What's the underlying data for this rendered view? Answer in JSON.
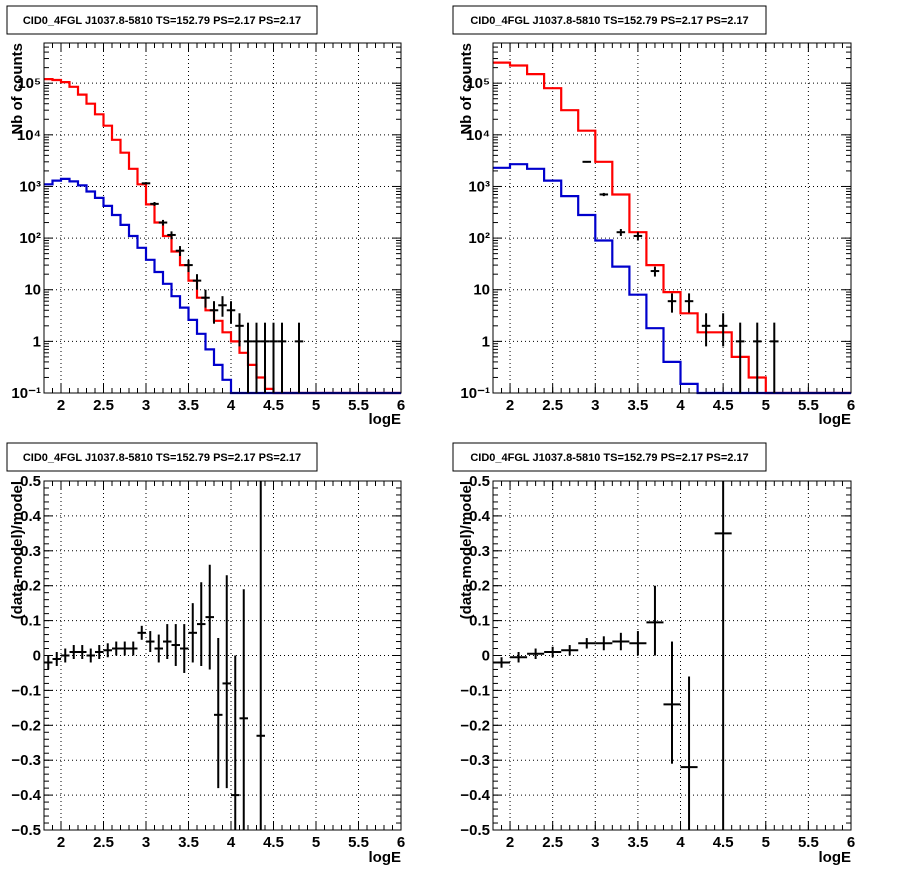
{
  "chart_data": [
    {
      "id": "counts-left",
      "type": "line",
      "title": "CID0_4FGL J1037.8-5810 TS=152.79 PS=2.17 PS=2.17",
      "xlabel": "logE",
      "ylabel": "Nb of counts",
      "xlim": [
        1.8,
        6.0
      ],
      "ylim": [
        0.1,
        600000
      ],
      "log_y": true,
      "grid": true,
      "x_ticks": [
        2,
        2.5,
        3,
        3.5,
        4,
        4.5,
        5,
        5.5,
        6
      ],
      "x_tick_labels": [
        "2",
        "2.5",
        "3",
        "3.5",
        "4",
        "4.5",
        "5",
        "5.5",
        "6"
      ],
      "y_ticks": [
        0.1,
        1,
        10,
        100,
        1000,
        10000,
        100000
      ],
      "y_tick_labels": [
        "10⁻¹",
        "1",
        "10",
        "10²",
        "10³",
        "10⁴",
        "10⁵"
      ],
      "bin_edges": [
        1.8,
        1.9,
        2.0,
        2.1,
        2.2,
        2.3,
        2.4,
        2.5,
        2.6,
        2.7,
        2.8,
        2.9,
        3.0,
        3.1,
        3.2,
        3.3,
        3.4,
        3.5,
        3.6,
        3.7,
        3.8,
        3.9,
        4.0,
        4.1,
        4.2,
        4.3,
        4.4,
        4.5,
        4.6,
        4.7,
        4.8,
        4.9,
        5.0,
        5.1,
        5.2,
        5.3,
        5.4,
        5.5,
        5.6,
        5.7,
        5.8,
        5.9,
        6.0
      ],
      "series": [
        {
          "name": "",
          "color": "#ff0000",
          "style": "step",
          "values": [
            120000,
            115000,
            105000,
            85000,
            60000,
            40000,
            25000,
            15000,
            8000,
            4500,
            2200,
            1100,
            450,
            200,
            110,
            55,
            30,
            15,
            7,
            4,
            2.5,
            1.5,
            1.0,
            0.6,
            0.35,
            0.2,
            0.12,
            0.1,
            0.1,
            0.1,
            0.1,
            0.1,
            0.1,
            0.1,
            0.1,
            0.1,
            0.1,
            0.1,
            0.1,
            0.1,
            0.1,
            0.1
          ]
        },
        {
          "name": "",
          "color": "#0000cc",
          "style": "step",
          "values": [
            1100,
            1300,
            1400,
            1250,
            1050,
            800,
            600,
            420,
            280,
            180,
            110,
            65,
            38,
            22,
            13,
            7.5,
            4.5,
            2.6,
            1.4,
            0.7,
            0.35,
            0.18,
            0.1,
            0.1,
            0.1,
            0.1,
            0.1,
            0.1,
            0.1,
            0.1,
            0.1,
            0.1,
            0.1,
            0.1,
            0.1,
            0.1,
            0.1,
            0.1,
            0.1,
            0.1,
            0.1,
            0.1
          ]
        },
        {
          "name": "",
          "color": "#000000",
          "style": "errorbar",
          "points": [
            {
              "x": 3.0,
              "y": 1150,
              "lo": 1090,
              "hi": 1210
            },
            {
              "x": 3.1,
              "y": 460,
              "lo": 420,
              "hi": 500
            },
            {
              "x": 3.2,
              "y": 200,
              "lo": 175,
              "hi": 225
            },
            {
              "x": 3.3,
              "y": 115,
              "lo": 95,
              "hi": 135
            },
            {
              "x": 3.4,
              "y": 57,
              "lo": 45,
              "hi": 70
            },
            {
              "x": 3.5,
              "y": 30,
              "lo": 22,
              "hi": 38
            },
            {
              "x": 3.6,
              "y": 15,
              "lo": 10,
              "hi": 20
            },
            {
              "x": 3.7,
              "y": 7,
              "lo": 4.5,
              "hi": 10
            },
            {
              "x": 3.8,
              "y": 4,
              "lo": 2.2,
              "hi": 6
            },
            {
              "x": 3.9,
              "y": 5,
              "lo": 3,
              "hi": 7.5
            },
            {
              "x": 4.0,
              "y": 4,
              "lo": 2.2,
              "hi": 6
            },
            {
              "x": 4.1,
              "y": 2,
              "lo": 0.8,
              "hi": 3.5
            },
            {
              "x": 4.2,
              "y": 1,
              "lo": 0.1,
              "hi": 2.3
            },
            {
              "x": 4.3,
              "y": 1,
              "lo": 0.1,
              "hi": 2.3
            },
            {
              "x": 4.4,
              "y": 1,
              "lo": 0.1,
              "hi": 2.3
            },
            {
              "x": 4.5,
              "y": 1,
              "lo": 0.1,
              "hi": 2.3
            },
            {
              "x": 4.6,
              "y": 1,
              "lo": 0.1,
              "hi": 2.3
            },
            {
              "x": 4.8,
              "y": 1,
              "lo": 0.1,
              "hi": 2.3
            }
          ]
        }
      ]
    },
    {
      "id": "counts-right",
      "type": "line",
      "title": "CID0_4FGL J1037.8-5810 TS=152.79 PS=2.17 PS=2.17",
      "xlabel": "logE",
      "ylabel": "Nb of counts",
      "xlim": [
        1.8,
        6.0
      ],
      "ylim": [
        0.1,
        600000
      ],
      "log_y": true,
      "grid": true,
      "x_ticks": [
        2,
        2.5,
        3,
        3.5,
        4,
        4.5,
        5,
        5.5,
        6
      ],
      "x_tick_labels": [
        "2",
        "2.5",
        "3",
        "3.5",
        "4",
        "4.5",
        "5",
        "5.5",
        "6"
      ],
      "y_ticks": [
        0.1,
        1,
        10,
        100,
        1000,
        10000,
        100000
      ],
      "y_tick_labels": [
        "10⁻¹",
        "1",
        "10",
        "10²",
        "10³",
        "10⁴",
        "10⁵"
      ],
      "bin_edges": [
        1.8,
        2.0,
        2.2,
        2.4,
        2.6,
        2.8,
        3.0,
        3.2,
        3.4,
        3.6,
        3.8,
        4.0,
        4.2,
        4.4,
        4.6,
        4.8,
        5.0,
        5.2,
        5.4,
        5.6,
        5.8,
        6.0
      ],
      "series": [
        {
          "name": "",
          "color": "#ff0000",
          "style": "step",
          "values": [
            250000,
            220000,
            150000,
            80000,
            30000,
            12000,
            3000,
            700,
            130,
            30,
            9,
            3.5,
            1.5,
            1.5,
            0.5,
            0.2,
            0.1,
            0.1,
            0.1,
            0.1,
            0.1
          ]
        },
        {
          "name": "",
          "color": "#0000cc",
          "style": "step",
          "values": [
            2300,
            2700,
            2200,
            1300,
            650,
            280,
            90,
            28,
            8,
            1.8,
            0.4,
            0.15,
            0.1,
            0.1,
            0.1,
            0.1,
            0.1,
            0.1,
            0.1,
            0.1,
            0.1
          ]
        },
        {
          "name": "",
          "color": "#000000",
          "style": "errorbar",
          "points": [
            {
              "x": 2.9,
              "y": 3000,
              "lo": 2900,
              "hi": 3100
            },
            {
              "x": 3.1,
              "y": 700,
              "lo": 650,
              "hi": 750
            },
            {
              "x": 3.3,
              "y": 130,
              "lo": 110,
              "hi": 150
            },
            {
              "x": 3.5,
              "y": 110,
              "lo": 90,
              "hi": 130
            },
            {
              "x": 3.7,
              "y": 23,
              "lo": 18,
              "hi": 28
            },
            {
              "x": 3.9,
              "y": 6,
              "lo": 3.6,
              "hi": 8.5
            },
            {
              "x": 4.1,
              "y": 6,
              "lo": 3.6,
              "hi": 8.5
            },
            {
              "x": 4.3,
              "y": 2,
              "lo": 0.8,
              "hi": 3.5
            },
            {
              "x": 4.5,
              "y": 2,
              "lo": 0.8,
              "hi": 3.5
            },
            {
              "x": 4.7,
              "y": 1,
              "lo": 0.1,
              "hi": 2.3
            },
            {
              "x": 4.9,
              "y": 1,
              "lo": 0.1,
              "hi": 2.3
            },
            {
              "x": 5.1,
              "y": 1,
              "lo": 0.1,
              "hi": 2.3
            }
          ]
        }
      ]
    },
    {
      "id": "resid-left",
      "type": "scatter",
      "title": "CID0_4FGL J1037.8-5810 TS=152.79 PS=2.17 PS=2.17",
      "xlabel": "logE",
      "ylabel": "(data-model)/model",
      "xlim": [
        1.8,
        6.0
      ],
      "ylim": [
        -0.5,
        0.5
      ],
      "log_y": false,
      "grid": true,
      "x_ticks": [
        2,
        2.5,
        3,
        3.5,
        4,
        4.5,
        5,
        5.5,
        6
      ],
      "x_tick_labels": [
        "2",
        "2.5",
        "3",
        "3.5",
        "4",
        "4.5",
        "5",
        "5.5",
        "6"
      ],
      "y_ticks": [
        -0.5,
        -0.4,
        -0.3,
        -0.2,
        -0.1,
        0,
        0.1,
        0.2,
        0.3,
        0.4,
        0.5
      ],
      "y_tick_labels": [
        "−0.5",
        "−0.4",
        "−0.3",
        "−0.2",
        "−0.1",
        "0",
        "0.1",
        "0.2",
        "0.3",
        "0.4",
        "0.5"
      ],
      "series": [
        {
          "name": "",
          "color": "#000000",
          "style": "errorbar",
          "xerr": 0.05,
          "points": [
            {
              "x": 1.85,
              "y": -0.02,
              "lo": -0.04,
              "hi": 0.0
            },
            {
              "x": 1.95,
              "y": -0.01,
              "lo": -0.03,
              "hi": 0.01
            },
            {
              "x": 2.05,
              "y": 0.0,
              "lo": -0.02,
              "hi": 0.02
            },
            {
              "x": 2.15,
              "y": 0.01,
              "lo": -0.01,
              "hi": 0.03
            },
            {
              "x": 2.25,
              "y": 0.01,
              "lo": -0.01,
              "hi": 0.03
            },
            {
              "x": 2.35,
              "y": 0.0,
              "lo": -0.02,
              "hi": 0.02
            },
            {
              "x": 2.45,
              "y": 0.01,
              "lo": -0.01,
              "hi": 0.03
            },
            {
              "x": 2.55,
              "y": 0.015,
              "lo": -0.005,
              "hi": 0.035
            },
            {
              "x": 2.65,
              "y": 0.02,
              "lo": 0.0,
              "hi": 0.04
            },
            {
              "x": 2.75,
              "y": 0.02,
              "lo": 0.0,
              "hi": 0.04
            },
            {
              "x": 2.85,
              "y": 0.02,
              "lo": 0.0,
              "hi": 0.04
            },
            {
              "x": 2.95,
              "y": 0.065,
              "lo": 0.045,
              "hi": 0.085
            },
            {
              "x": 3.05,
              "y": 0.04,
              "lo": 0.01,
              "hi": 0.07
            },
            {
              "x": 3.15,
              "y": 0.02,
              "lo": -0.02,
              "hi": 0.06
            },
            {
              "x": 3.25,
              "y": 0.04,
              "lo": -0.01,
              "hi": 0.09
            },
            {
              "x": 3.35,
              "y": 0.03,
              "lo": -0.03,
              "hi": 0.09
            },
            {
              "x": 3.45,
              "y": 0.02,
              "lo": -0.05,
              "hi": 0.09
            },
            {
              "x": 3.55,
              "y": 0.065,
              "lo": -0.02,
              "hi": 0.15
            },
            {
              "x": 3.65,
              "y": 0.09,
              "lo": -0.03,
              "hi": 0.21
            },
            {
              "x": 3.75,
              "y": 0.11,
              "lo": -0.04,
              "hi": 0.26
            },
            {
              "x": 3.85,
              "y": -0.17,
              "lo": -0.38,
              "hi": 0.05
            },
            {
              "x": 3.95,
              "y": -0.08,
              "lo": -0.38,
              "hi": 0.23
            },
            {
              "x": 4.05,
              "y": -0.4,
              "lo": -0.5,
              "hi": 0.0
            },
            {
              "x": 4.15,
              "y": -0.18,
              "lo": -0.5,
              "hi": 0.19
            },
            {
              "x": 4.35,
              "y": -0.23,
              "lo": -0.5,
              "hi": 0.5
            }
          ]
        }
      ]
    },
    {
      "id": "resid-right",
      "type": "scatter",
      "title": "CID0_4FGL J1037.8-5810 TS=152.79 PS=2.17 PS=2.17",
      "xlabel": "logE",
      "ylabel": "(data-model)/model",
      "xlim": [
        1.8,
        6.0
      ],
      "ylim": [
        -0.5,
        0.5
      ],
      "log_y": false,
      "grid": true,
      "x_ticks": [
        2,
        2.5,
        3,
        3.5,
        4,
        4.5,
        5,
        5.5,
        6
      ],
      "x_tick_labels": [
        "2",
        "2.5",
        "3",
        "3.5",
        "4",
        "4.5",
        "5",
        "5.5",
        "6"
      ],
      "y_ticks": [
        -0.5,
        -0.4,
        -0.3,
        -0.2,
        -0.1,
        0,
        0.1,
        0.2,
        0.3,
        0.4,
        0.5
      ],
      "y_tick_labels": [
        "−0.5",
        "−0.4",
        "−0.3",
        "−0.2",
        "−0.1",
        "0",
        "0.1",
        "0.2",
        "0.3",
        "0.4",
        "0.5"
      ],
      "series": [
        {
          "name": "",
          "color": "#000000",
          "style": "errorbar",
          "xerr": 0.1,
          "points": [
            {
              "x": 1.9,
              "y": -0.02,
              "lo": -0.035,
              "hi": -0.005
            },
            {
              "x": 2.1,
              "y": -0.005,
              "lo": -0.02,
              "hi": 0.01
            },
            {
              "x": 2.3,
              "y": 0.005,
              "lo": -0.01,
              "hi": 0.02
            },
            {
              "x": 2.5,
              "y": 0.01,
              "lo": -0.005,
              "hi": 0.025
            },
            {
              "x": 2.7,
              "y": 0.015,
              "lo": 0.0,
              "hi": 0.03
            },
            {
              "x": 2.9,
              "y": 0.035,
              "lo": 0.02,
              "hi": 0.05
            },
            {
              "x": 3.1,
              "y": 0.035,
              "lo": 0.015,
              "hi": 0.055
            },
            {
              "x": 3.3,
              "y": 0.04,
              "lo": 0.015,
              "hi": 0.065
            },
            {
              "x": 3.5,
              "y": 0.035,
              "lo": 0.0,
              "hi": 0.07
            },
            {
              "x": 3.7,
              "y": 0.095,
              "lo": 0.0,
              "hi": 0.2
            },
            {
              "x": 3.9,
              "y": -0.14,
              "lo": -0.31,
              "hi": 0.04
            },
            {
              "x": 4.1,
              "y": -0.32,
              "lo": -0.5,
              "hi": -0.06
            },
            {
              "x": 4.5,
              "y": 0.35,
              "lo": -0.5,
              "hi": 0.5
            }
          ]
        }
      ]
    }
  ]
}
